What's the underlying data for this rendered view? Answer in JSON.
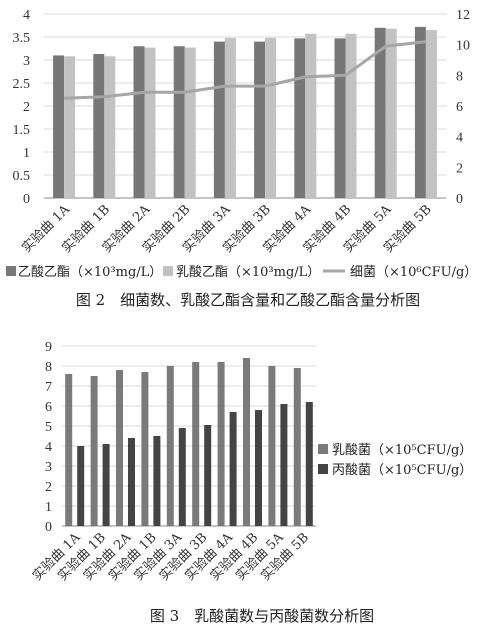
{
  "colors": {
    "c1_acetate": "#777777",
    "c1_lactate": "#c2c2c2",
    "c1_bacteria": "#a6a6a6",
    "c2_lab": "#7a7a7a",
    "c2_pab": "#444444"
  },
  "chart_data": [
    {
      "type": "bar+line",
      "caption": "图 2　细菌数、乳酸乙酯含量和乙酸乙酯含量分析图",
      "categories": [
        "实验曲 1A",
        "实验曲 1B",
        "实验曲 2A",
        "实验曲 2B",
        "实验曲 3A",
        "实验曲 3B",
        "实验曲 4A",
        "实验曲 4B",
        "实验曲 5A",
        "实验曲 5B"
      ],
      "series": [
        {
          "name": "乙酸乙酯（×10³mg/L）",
          "kind": "bar",
          "axis": "left",
          "values": [
            3.1,
            3.13,
            3.3,
            3.3,
            3.4,
            3.4,
            3.47,
            3.47,
            3.7,
            3.72
          ]
        },
        {
          "name": "乳酸乙酯（×10³mg/L）",
          "kind": "bar",
          "axis": "left",
          "values": [
            3.08,
            3.08,
            3.27,
            3.27,
            3.48,
            3.48,
            3.57,
            3.57,
            3.68,
            3.65
          ]
        },
        {
          "name": "细菌（×10⁶CFU/g）",
          "kind": "line",
          "axis": "right",
          "values": [
            6.5,
            6.6,
            6.9,
            6.9,
            7.3,
            7.3,
            7.9,
            8.0,
            9.9,
            10.2
          ]
        }
      ],
      "ylim_left": [
        0,
        4
      ],
      "yticks_left": [
        "0",
        "0.5",
        "1",
        "1.5",
        "2",
        "2.5",
        "3",
        "3.5",
        "4"
      ],
      "ylim_right": [
        0,
        12
      ],
      "yticks_right": [
        "0",
        "2",
        "4",
        "6",
        "8",
        "10",
        "12"
      ],
      "grid": true,
      "legend": "bottom"
    },
    {
      "type": "bar",
      "caption": "图 3　乳酸菌数与丙酸菌数分析图",
      "categories": [
        "实验曲 1A",
        "实验曲 1B",
        "实验曲 2A",
        "实验曲 1B",
        "实验曲 3A",
        "实验曲 3B",
        "实验曲 4A",
        "实验曲 4B",
        "实验曲 5A",
        "实验曲 5B"
      ],
      "series": [
        {
          "name": "乳酸菌（×10⁵CFU/g）",
          "values": [
            7.6,
            7.5,
            7.8,
            7.7,
            8.0,
            8.2,
            8.2,
            8.4,
            8.0,
            7.9
          ]
        },
        {
          "name": "丙酸菌（×10⁵CFU/g）",
          "values": [
            4.0,
            4.1,
            4.4,
            4.5,
            4.9,
            5.05,
            5.7,
            5.8,
            6.1,
            6.2
          ]
        }
      ],
      "ylim": [
        0,
        9
      ],
      "yticks": [
        "0",
        "1",
        "2",
        "3",
        "4",
        "5",
        "6",
        "7",
        "8",
        "9"
      ],
      "grid": true,
      "legend": "right"
    }
  ]
}
